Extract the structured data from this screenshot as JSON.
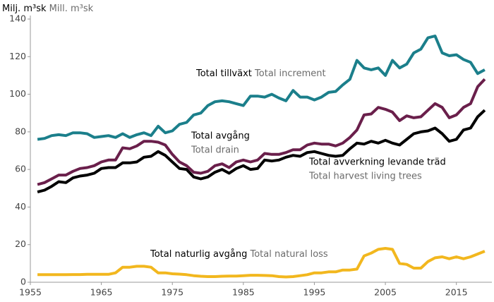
{
  "chart_data": {
    "type": "line",
    "y_label": "Milj. m³sk",
    "y_label_en": "Mill. m³sk",
    "x": [
      1956,
      1957,
      1958,
      1959,
      1960,
      1961,
      1962,
      1963,
      1964,
      1965,
      1966,
      1967,
      1968,
      1969,
      1970,
      1971,
      1972,
      1973,
      1974,
      1975,
      1976,
      1977,
      1978,
      1979,
      1980,
      1981,
      1982,
      1983,
      1984,
      1985,
      1986,
      1987,
      1988,
      1989,
      1990,
      1991,
      1992,
      1993,
      1994,
      1995,
      1996,
      1997,
      1998,
      1999,
      2000,
      2001,
      2002,
      2003,
      2004,
      2005,
      2006,
      2007,
      2008,
      2009,
      2010,
      2011,
      2012,
      2013,
      2014,
      2015,
      2016,
      2017,
      2018,
      2019
    ],
    "xlim": [
      1955,
      2020
    ],
    "xticks": [
      1955,
      1965,
      1975,
      1985,
      1995,
      2005,
      2015
    ],
    "ylim": [
      0,
      140
    ],
    "yticks": [
      0,
      20,
      40,
      60,
      80,
      100,
      120,
      140
    ],
    "grid": false,
    "series": [
      {
        "name": "Total tillväxt",
        "name_en": "Total increment",
        "color": "#1b7f8b",
        "values": [
          76,
          76.5,
          78,
          78.5,
          78,
          79.5,
          79.5,
          79,
          77,
          77.5,
          78,
          77,
          79,
          77,
          78.5,
          79.5,
          78,
          83,
          79.5,
          80.5,
          84,
          85,
          89,
          90,
          94,
          96,
          96.5,
          96,
          95,
          94,
          99,
          99,
          98.5,
          100,
          98,
          96.5,
          102,
          98.5,
          98.5,
          97,
          98.5,
          101,
          101.5,
          105,
          108,
          118,
          114,
          113,
          114,
          110,
          118,
          114,
          116,
          122,
          124,
          130,
          131,
          122,
          120.5,
          121,
          118.5,
          117,
          111,
          113
        ]
      },
      {
        "name": "Total avgång",
        "name_en": "Total drain",
        "color": "#6a1f4b",
        "values": [
          52,
          53,
          55,
          57,
          57,
          59,
          60.5,
          61,
          62,
          64,
          65,
          65,
          71.5,
          71,
          72.5,
          75,
          75,
          74.5,
          73,
          68,
          64,
          62,
          58.5,
          58,
          59,
          62,
          63,
          61,
          64,
          65,
          64,
          65,
          68.5,
          68,
          68,
          69,
          70.5,
          70.5,
          73,
          74,
          73.5,
          73.5,
          72.5,
          74,
          77,
          81,
          89,
          89.5,
          93,
          92,
          90.5,
          86,
          88.5,
          87.5,
          88,
          91.5,
          95,
          93,
          87.5,
          89,
          93,
          95,
          104,
          108
        ]
      },
      {
        "name": "Total avverkning levande träd",
        "name_en": "Total harvest living trees",
        "color": "#000000",
        "values": [
          48,
          49,
          51,
          53.5,
          53,
          55.5,
          56.5,
          57,
          58,
          60.5,
          61,
          61,
          63.5,
          63.5,
          64,
          66.5,
          67,
          69.5,
          67.5,
          64,
          60.5,
          60,
          56,
          55,
          56,
          58.5,
          60,
          58,
          60.5,
          62,
          60,
          60.5,
          65,
          64.5,
          65,
          66.5,
          67.5,
          67,
          69,
          69.5,
          68.5,
          67.5,
          67,
          67.5,
          71,
          74,
          73.5,
          75,
          74,
          75.5,
          74,
          73,
          76,
          79,
          80,
          80.5,
          82,
          79,
          75,
          76,
          81,
          82,
          88,
          91.5
        ]
      },
      {
        "name": "Total naturlig avgång",
        "name_en": "Total natural loss",
        "color": "#f2b71e",
        "values": [
          4,
          4,
          4,
          4,
          4,
          4.1,
          4.1,
          4.2,
          4.2,
          4.2,
          4.2,
          5,
          8,
          8,
          8.5,
          8.5,
          8,
          5,
          5,
          4.5,
          4.3,
          4,
          3.5,
          3.2,
          3,
          3,
          3.2,
          3.3,
          3.3,
          3.5,
          3.7,
          3.7,
          3.6,
          3.5,
          3,
          2.8,
          3,
          3.5,
          4,
          5,
          5,
          5.5,
          5.5,
          6.5,
          6.5,
          7,
          14,
          15.5,
          17.5,
          18,
          17.5,
          10,
          9.5,
          7.5,
          7.5,
          11,
          13,
          13.5,
          12.5,
          13.5,
          12.5,
          13.5,
          15,
          16.5
        ]
      }
    ]
  }
}
